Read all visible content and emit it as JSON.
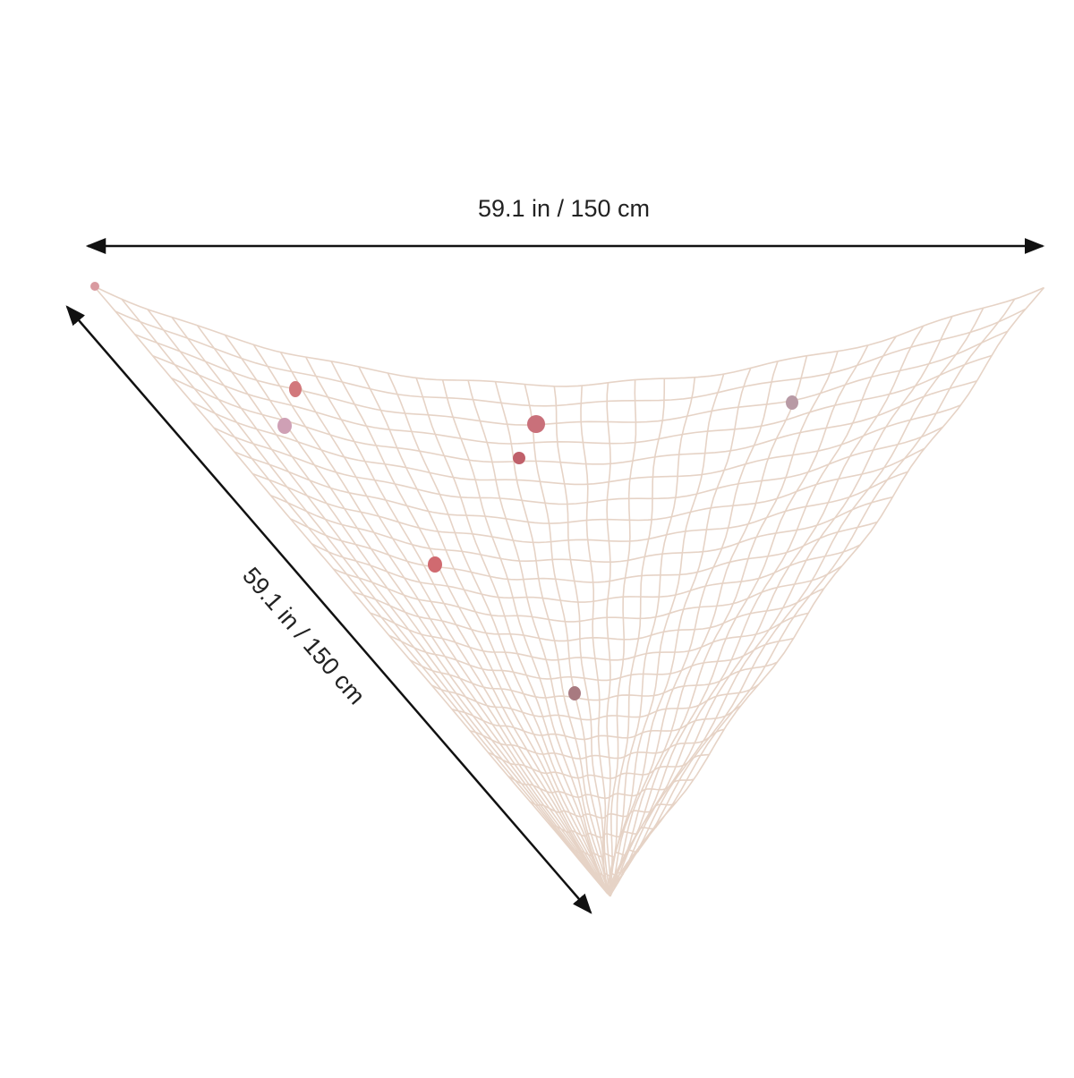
{
  "dimensions": {
    "width": "59.1 in / 150 cm",
    "side": "59.1 in / 150 cm"
  }
}
